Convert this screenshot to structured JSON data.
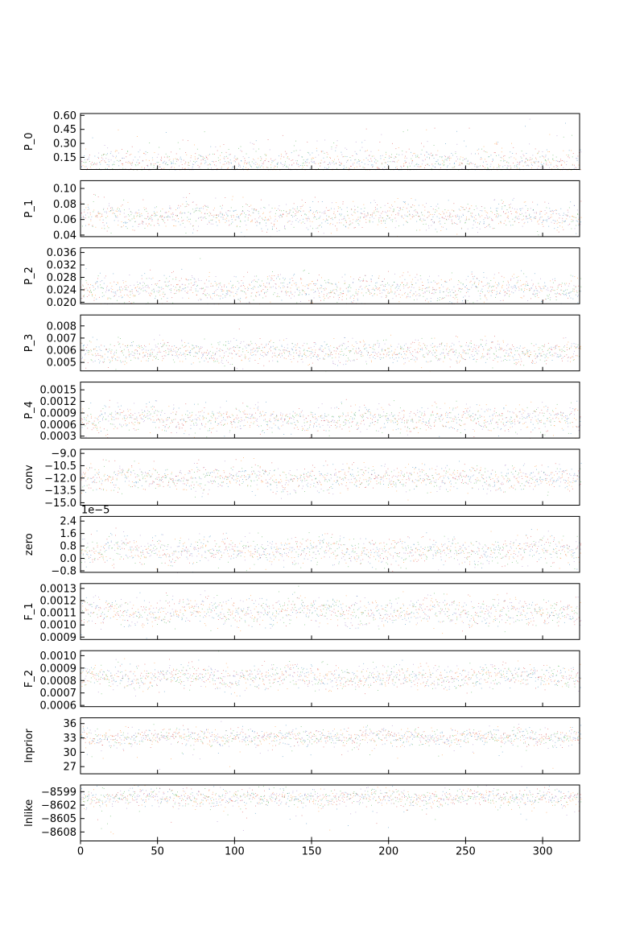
{
  "chart_data": {
    "type": "scatter",
    "description_kind": "MCMC trace plot (11 stacked panels, shared x-axis)",
    "x_range": [
      0,
      324
    ],
    "x_ticks": [
      0,
      50,
      100,
      150,
      200,
      250,
      300
    ],
    "series_colors": [
      "#1f77b4",
      "#ff7f0e",
      "#2ca02c",
      "#d62728",
      "#9467bd"
    ],
    "panels": [
      {
        "ylabel": "P_0",
        "ylim": [
          0.02,
          0.62
        ],
        "yticks": [
          0.15,
          0.3,
          0.45,
          0.6
        ],
        "yticklabels": [
          "0.15",
          "0.30",
          "0.45",
          "0.60"
        ],
        "center": 0.08,
        "spread": 0.07,
        "skew": "right"
      },
      {
        "ylabel": "P_1",
        "ylim": [
          0.038,
          0.11
        ],
        "yticks": [
          0.04,
          0.06,
          0.08,
          0.1
        ],
        "yticklabels": [
          "0.04",
          "0.06",
          "0.08",
          "0.10"
        ],
        "center": 0.065,
        "spread": 0.009
      },
      {
        "ylabel": "P_2",
        "ylim": [
          0.0195,
          0.0375
        ],
        "yticks": [
          0.02,
          0.024,
          0.028,
          0.032,
          0.036
        ],
        "yticklabels": [
          "0.020",
          "0.024",
          "0.028",
          "0.032",
          "0.036"
        ],
        "center": 0.0245,
        "spread": 0.0022
      },
      {
        "ylabel": "P_3",
        "ylim": [
          0.0043,
          0.0089
        ],
        "yticks": [
          0.005,
          0.006,
          0.007,
          0.008
        ],
        "yticklabels": [
          "0.005",
          "0.006",
          "0.007",
          "0.008"
        ],
        "center": 0.0059,
        "spread": 0.0005
      },
      {
        "ylabel": "P_4",
        "ylim": [
          0.00025,
          0.0017
        ],
        "yticks": [
          0.0003,
          0.0006,
          0.0009,
          0.0012,
          0.0015
        ],
        "yticklabels": [
          "0.0003",
          "0.0006",
          "0.0009",
          "0.0012",
          "0.0015"
        ],
        "center": 0.00075,
        "spread": 0.00017
      },
      {
        "ylabel": "conv",
        "ylim": [
          -15.3,
          -8.5
        ],
        "yticks": [
          -15.0,
          -13.5,
          -12.0,
          -10.5,
          -9.0
        ],
        "yticklabels": [
          "−15.0",
          "−13.5",
          "−12.0",
          "−10.5",
          "−9.0"
        ],
        "center": -12.0,
        "spread": 0.8
      },
      {
        "ylabel": "zero",
        "ylim": [
          -0.9,
          2.7
        ],
        "yticks": [
          -0.8,
          0.0,
          0.8,
          1.6,
          2.4
        ],
        "yticklabels": [
          "−0.8",
          "0.0",
          "0.8",
          "1.6",
          "2.4"
        ],
        "center": 0.5,
        "spread": 0.45,
        "offset_text": "1e−5"
      },
      {
        "ylabel": "F_1",
        "ylim": [
          0.00088,
          0.00134
        ],
        "yticks": [
          0.0009,
          0.001,
          0.0011,
          0.0012,
          0.0013
        ],
        "yticklabels": [
          "0.0009",
          "0.0010",
          "0.0011",
          "0.0012",
          "0.0013"
        ],
        "center": 0.00111,
        "spread": 6e-05
      },
      {
        "ylabel": "F_2",
        "ylim": [
          0.00059,
          0.00104
        ],
        "yticks": [
          0.0006,
          0.0007,
          0.0008,
          0.0009,
          0.001
        ],
        "yticklabels": [
          "0.0006",
          "0.0007",
          "0.0008",
          "0.0009",
          "0.0010"
        ],
        "center": 0.00083,
        "spread": 5e-05
      },
      {
        "ylabel": "lnprior",
        "ylim": [
          25.5,
          37.2
        ],
        "yticks": [
          27,
          30,
          33,
          36
        ],
        "yticklabels": [
          "27",
          "30",
          "33",
          "36"
        ],
        "center": 33.3,
        "spread": 0.9,
        "skew": "left"
      },
      {
        "ylabel": "lnlike",
        "ylim": [
          -8610,
          -8597.5
        ],
        "yticks": [
          -8608,
          -8605,
          -8602,
          -8599
        ],
        "yticklabels": [
          "−8608",
          "−8605",
          "−8602",
          "−8599"
        ],
        "center": -8600.2,
        "spread": 1.0,
        "skew": "left"
      }
    ]
  }
}
